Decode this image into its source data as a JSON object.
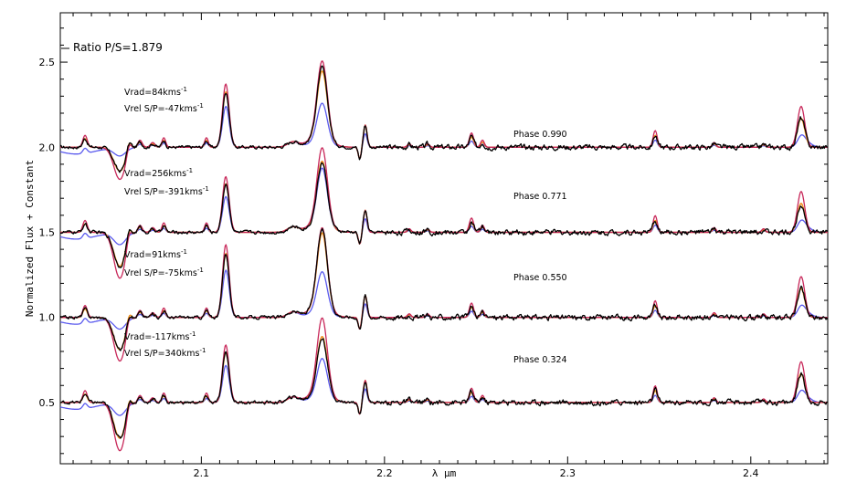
{
  "chart_data": {
    "type": "line",
    "xlabel": "λ μm",
    "ylabel": "Normalized Flux + Constant",
    "xlim": [
      2.023,
      2.442
    ],
    "ylim": [
      0.14,
      2.79
    ],
    "x_ticks": [
      "2.1",
      "2.2",
      "2.3",
      "2.4"
    ],
    "y_ticks": [
      "0.5",
      "1.0",
      "1.5",
      "2.0",
      "2.5"
    ],
    "grid": false,
    "ratio_label": "Ratio P/S=1.879",
    "colors": {
      "observed": "#000000",
      "model_total_magenta": "#c8285a",
      "model_orange": "#f09020",
      "model_secondary_blue": "#5a5aee"
    },
    "phases": [
      {
        "phase_label": "Phase 0.990",
        "vrad": "Vrad=84kms",
        "vrel": "Vrel S/P=-47kms",
        "unit_sup": "-1",
        "baseline": 2.0,
        "peaks": {
          "h2_2122": 0.3,
          "brg": 0.45,
          "magenta_brg": 0.51,
          "blue_brg": 0.26,
          "abs_2058": -0.14
        }
      },
      {
        "phase_label": "Phase 0.771",
        "vrad": "Vrad=256kms",
        "vrel": "Vrel S/P=-391kms",
        "unit_sup": "-1",
        "baseline": 1.5,
        "peaks": {
          "h2_2122": 0.26,
          "brg": 0.42,
          "magenta_brg": 0.5,
          "blue_brg": 0.38,
          "abs_2058": -0.2
        }
      },
      {
        "phase_label": "Phase 0.550",
        "vrad": "Vrad=91kms",
        "vrel": "Vrel S/P=-75kms",
        "unit_sup": "-1",
        "baseline": 1.0,
        "peaks": {
          "h2_2122": 0.35,
          "brg": 0.5,
          "magenta_brg": 0.53,
          "blue_brg": 0.27,
          "abs_2058": -0.19
        }
      },
      {
        "phase_label": "Phase 0.324",
        "vrad": "Vrad=-117kms",
        "vrel": "Vrel S/P=340kms",
        "unit_sup": "-1",
        "baseline": 0.5,
        "peaks": {
          "h2_2122": 0.27,
          "brg": 0.39,
          "magenta_brg": 0.5,
          "blue_brg": 0.26,
          "abs_2058": -0.21
        }
      }
    ]
  }
}
